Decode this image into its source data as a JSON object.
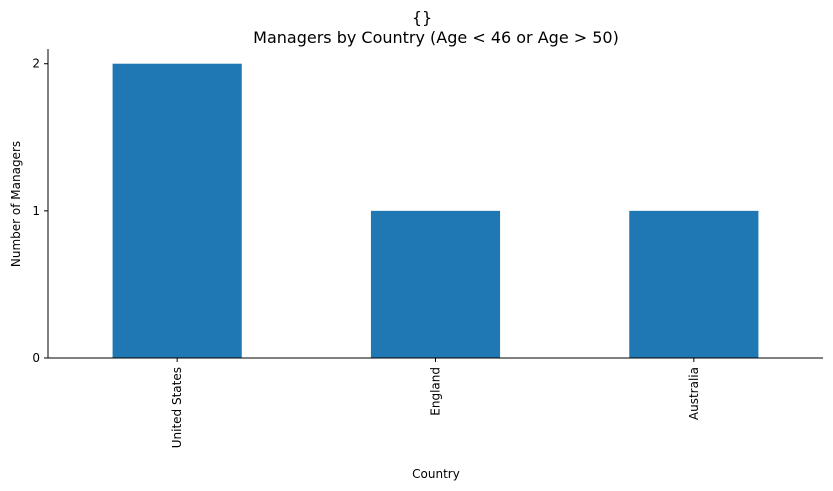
{
  "chart_data": {
    "type": "bar",
    "title_line1": "{}",
    "title": "Managers by Country (Age < 46 or Age > 50)",
    "xlabel": "Country",
    "ylabel": "Number of Managers",
    "categories": [
      "United States",
      "England",
      "Australia"
    ],
    "values": [
      2,
      1,
      1
    ],
    "ylim": [
      0,
      2.1
    ],
    "yticks": [
      0,
      1,
      2
    ],
    "bar_color": "#1f77b4",
    "grid": false,
    "legend": "none"
  }
}
